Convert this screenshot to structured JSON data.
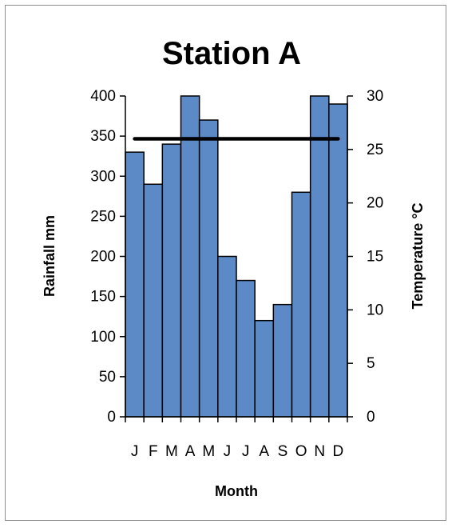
{
  "chart_data": {
    "type": "bar",
    "title": "Station A",
    "xlabel": "Month",
    "ylabel": "Rainfall mm",
    "y2label": "Temperature °C",
    "categories": [
      "J",
      "F",
      "M",
      "A",
      "M",
      "J",
      "J",
      "A",
      "S",
      "O",
      "N",
      "D"
    ],
    "series": [
      {
        "type": "bar",
        "axis": "left",
        "values": [
          330,
          290,
          340,
          400,
          370,
          200,
          170,
          120,
          140,
          280,
          400,
          390
        ]
      },
      {
        "type": "line",
        "axis": "right",
        "values": [
          26,
          26,
          26,
          26,
          26,
          26,
          26,
          26,
          26,
          26,
          26,
          26
        ]
      }
    ],
    "ylim": [
      0,
      400
    ],
    "yticks": [
      0,
      50,
      100,
      150,
      200,
      250,
      300,
      350,
      400
    ],
    "y2lim": [
      0,
      30
    ],
    "y2ticks": [
      0,
      5,
      10,
      15,
      20,
      25,
      30
    ],
    "grid": false,
    "legend": "none",
    "colors": {
      "bar_fill": "#5b8ac6",
      "bar_edge": "#000000",
      "line": "#000000"
    }
  }
}
